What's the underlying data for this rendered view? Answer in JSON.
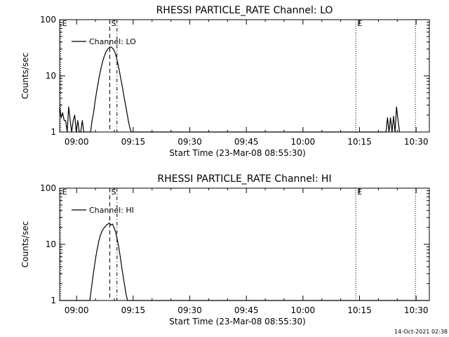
{
  "footer": {
    "timestamp": "14-Oct-2021 02:38"
  },
  "chart_data": [
    {
      "type": "line",
      "title": "RHESSI PARTICLE_RATE Channel: LO",
      "xlabel": "Start Time (23-Mar-08 08:55:30)",
      "ylabel": "Counts/sec",
      "x_unit": "minutes after 08:55:30",
      "xlim": [
        0,
        98
      ],
      "ylim": [
        1,
        100
      ],
      "y_scale": "log",
      "x_ticks": [
        {
          "value": 4.5,
          "label": "09:00"
        },
        {
          "value": 19.5,
          "label": "09:15"
        },
        {
          "value": 34.5,
          "label": "09:30"
        },
        {
          "value": 49.5,
          "label": "09:45"
        },
        {
          "value": 64.5,
          "label": "10:00"
        },
        {
          "value": 79.5,
          "label": "10:15"
        },
        {
          "value": 94.5,
          "label": "10:30"
        }
      ],
      "y_ticks": [
        {
          "value": 1,
          "label": "1"
        },
        {
          "value": 10,
          "label": "10"
        },
        {
          "value": 100,
          "label": "100"
        }
      ],
      "legend": {
        "label": "Channel: LO",
        "position": "top-left"
      },
      "vlines": [
        {
          "x": 0.3,
          "style": "dotted",
          "label": "E"
        },
        {
          "x": 13.3,
          "style": "dashed",
          "label": "S"
        },
        {
          "x": 15.2,
          "style": "dashdot",
          "label": ""
        },
        {
          "x": 78.5,
          "style": "dotted",
          "label": "E"
        },
        {
          "x": 94.3,
          "style": "dotted",
          "label": ""
        }
      ],
      "series": [
        {
          "name": "Channel: LO",
          "points": [
            [
              0,
              2.8
            ],
            [
              0.4,
              1.8
            ],
            [
              0.8,
              2.2
            ],
            [
              1.2,
              1.6
            ],
            [
              1.6,
              1.6
            ],
            [
              2.0,
              1
            ],
            [
              2.4,
              2.8
            ],
            [
              2.8,
              1.6
            ],
            [
              3.2,
              1
            ],
            [
              3.6,
              1.6
            ],
            [
              4.0,
              2.0
            ],
            [
              4.4,
              1
            ],
            [
              4.8,
              1.6
            ],
            [
              5.2,
              1
            ],
            [
              5.6,
              1
            ],
            [
              6.0,
              1.6
            ],
            [
              6.4,
              1
            ],
            [
              6.8,
              1
            ],
            [
              7.2,
              1
            ],
            [
              7.6,
              1
            ],
            [
              8.2,
              1
            ],
            [
              8.6,
              1.6
            ],
            [
              9.0,
              2.2
            ],
            [
              9.4,
              3.5
            ],
            [
              9.8,
              5.2
            ],
            [
              10.2,
              7.5
            ],
            [
              10.6,
              10.5
            ],
            [
              11.0,
              14
            ],
            [
              11.4,
              18
            ],
            [
              11.8,
              22
            ],
            [
              12.2,
              26
            ],
            [
              12.6,
              29
            ],
            [
              13.0,
              31
            ],
            [
              13.4,
              33
            ],
            [
              13.8,
              32
            ],
            [
              14.2,
              30
            ],
            [
              14.6,
              27
            ],
            [
              15.0,
              22
            ],
            [
              15.4,
              17
            ],
            [
              15.8,
              12.5
            ],
            [
              16.2,
              9
            ],
            [
              16.6,
              6.5
            ],
            [
              17.0,
              4.5
            ],
            [
              17.4,
              3.2
            ],
            [
              17.8,
              2.3
            ],
            [
              18.2,
              1.6
            ],
            [
              18.6,
              1.2
            ],
            [
              19.0,
              1
            ],
            [
              86.5,
              1
            ],
            [
              86.9,
              1.8
            ],
            [
              87.3,
              1
            ],
            [
              87.7,
              1.8
            ],
            [
              88.1,
              1
            ],
            [
              88.5,
              1.9
            ],
            [
              88.9,
              1
            ],
            [
              89.3,
              2.8
            ],
            [
              89.7,
              1.6
            ],
            [
              90.1,
              1
            ]
          ]
        }
      ]
    },
    {
      "type": "line",
      "title": "RHESSI PARTICLE_RATE Channel: HI",
      "xlabel": "Start Time (23-Mar-08 08:55:30)",
      "ylabel": "Counts/sec",
      "x_unit": "minutes after 08:55:30",
      "xlim": [
        0,
        98
      ],
      "ylim": [
        1,
        100
      ],
      "y_scale": "log",
      "x_ticks": [
        {
          "value": 4.5,
          "label": "09:00"
        },
        {
          "value": 19.5,
          "label": "09:15"
        },
        {
          "value": 34.5,
          "label": "09:30"
        },
        {
          "value": 49.5,
          "label": "09:45"
        },
        {
          "value": 64.5,
          "label": "10:00"
        },
        {
          "value": 79.5,
          "label": "10:15"
        },
        {
          "value": 94.5,
          "label": "10:30"
        }
      ],
      "y_ticks": [
        {
          "value": 1,
          "label": "1"
        },
        {
          "value": 10,
          "label": "10"
        },
        {
          "value": 100,
          "label": "100"
        }
      ],
      "legend": {
        "label": "Channel: HI",
        "position": "top-left"
      },
      "vlines": [
        {
          "x": 0.3,
          "style": "dotted",
          "label": "E"
        },
        {
          "x": 13.3,
          "style": "dashed",
          "label": "S"
        },
        {
          "x": 15.2,
          "style": "dashdot",
          "label": ""
        },
        {
          "x": 78.5,
          "style": "dotted",
          "label": "E"
        },
        {
          "x": 94.3,
          "style": "dotted",
          "label": ""
        }
      ],
      "series": [
        {
          "name": "Channel: HI",
          "points": [
            [
              0,
              1
            ],
            [
              8.0,
              1
            ],
            [
              8.4,
              1.6
            ],
            [
              8.8,
              2.6
            ],
            [
              9.2,
              4
            ],
            [
              9.6,
              6
            ],
            [
              10.0,
              8.5
            ],
            [
              10.4,
              11.5
            ],
            [
              10.8,
              14.5
            ],
            [
              11.2,
              17
            ],
            [
              11.6,
              19
            ],
            [
              12.0,
              20.5
            ],
            [
              12.4,
              22
            ],
            [
              12.8,
              23
            ],
            [
              13.2,
              24
            ],
            [
              13.6,
              22
            ],
            [
              14.0,
              23
            ],
            [
              14.4,
              20
            ],
            [
              14.8,
              17
            ],
            [
              15.2,
              13
            ],
            [
              15.6,
              9.5
            ],
            [
              16.0,
              6.5
            ],
            [
              16.4,
              4.2
            ],
            [
              16.8,
              2.8
            ],
            [
              17.2,
              1.9
            ],
            [
              17.6,
              1.3
            ],
            [
              18.0,
              1
            ],
            [
              98,
              1
            ]
          ]
        }
      ]
    }
  ]
}
